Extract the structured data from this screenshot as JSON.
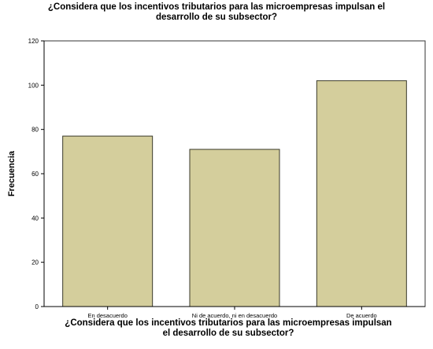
{
  "chart_data": {
    "type": "bar",
    "title_lines": [
      "¿Considera que los incentivos tributarios para las microempresas impulsan el",
      "desarrollo de su subsector?"
    ],
    "xlabel_lines": [
      "¿Considera que los incentivos tributarios para las microempresas impulsan",
      "el desarrollo de su subsector?"
    ],
    "ylabel": "Frecuencia",
    "categories": [
      "En desacuerdo",
      "Ni de acuerdo, ni en desacuerdo",
      "De acuerdo"
    ],
    "values": [
      77,
      71,
      102
    ],
    "ylim": [
      0,
      120
    ],
    "yticks": [
      0,
      20,
      40,
      60,
      80,
      100,
      120
    ],
    "grid": false,
    "colors": {
      "bar_fill": "#d4ce9c",
      "bar_stroke": "#3a3a2a",
      "axis": "#000000",
      "frame": "#333333"
    }
  }
}
